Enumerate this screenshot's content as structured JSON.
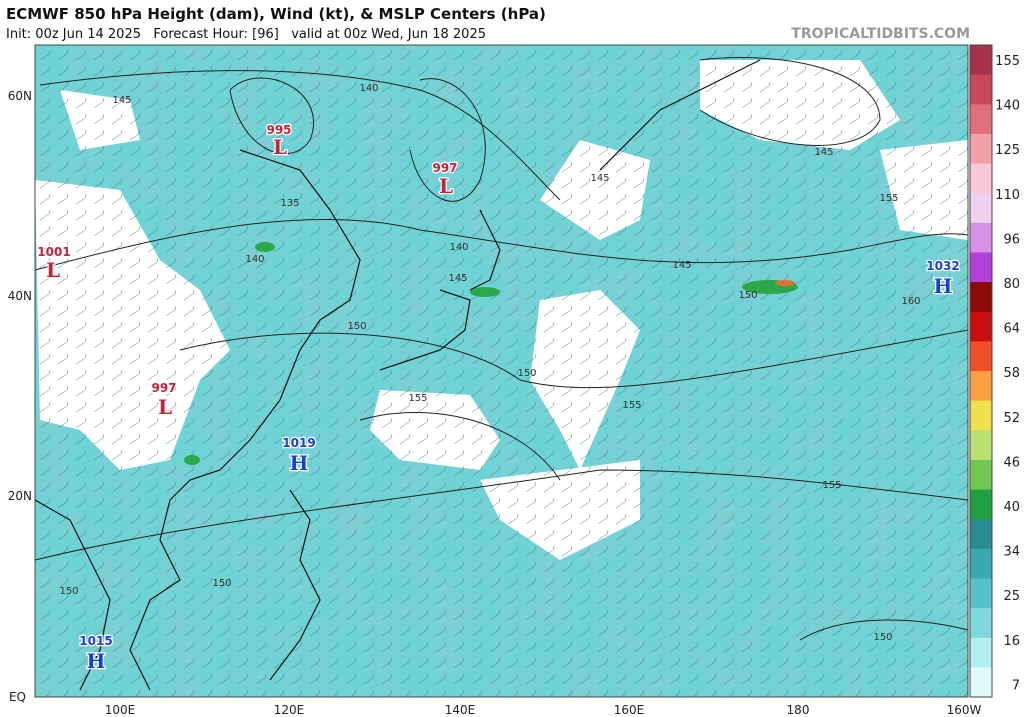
{
  "header": {
    "title": "ECMWF 850 hPa Height (dam), Wind (kt), & MSLP Centers (hPa)",
    "subtitle": "Init: 00z Jun 14 2025   Forecast Hour: [96]   valid at 00z Wed, Jun 18 2025",
    "brand": "TROPICALTIDBITS.COM"
  },
  "map": {
    "latitude_labels": [
      "60N",
      "40N",
      "20N",
      "EQ"
    ],
    "longitude_labels": [
      "100E",
      "120E",
      "140E",
      "160E",
      "180",
      "160W"
    ],
    "pressure_centers": [
      {
        "value": "995",
        "letter": "L"
      },
      {
        "value": "997",
        "letter": "L"
      },
      {
        "value": "1001",
        "letter": "L"
      },
      {
        "value": "997",
        "letter": "L"
      },
      {
        "value": "1019",
        "letter": "H"
      },
      {
        "value": "1032",
        "letter": "H"
      },
      {
        "value": "1015",
        "letter": "H"
      }
    ],
    "contour_labels": [
      "145",
      "140",
      "135",
      "140",
      "140",
      "145",
      "150",
      "150",
      "155",
      "155",
      "145",
      "150",
      "145",
      "145",
      "155",
      "160",
      "155",
      "150",
      "150",
      "150"
    ]
  },
  "colorbar": {
    "labels": [
      "155",
      "140",
      "125",
      "110",
      "96",
      "80",
      "64",
      "58",
      "52",
      "46",
      "40",
      "34",
      "25",
      "16",
      "7"
    ]
  }
}
